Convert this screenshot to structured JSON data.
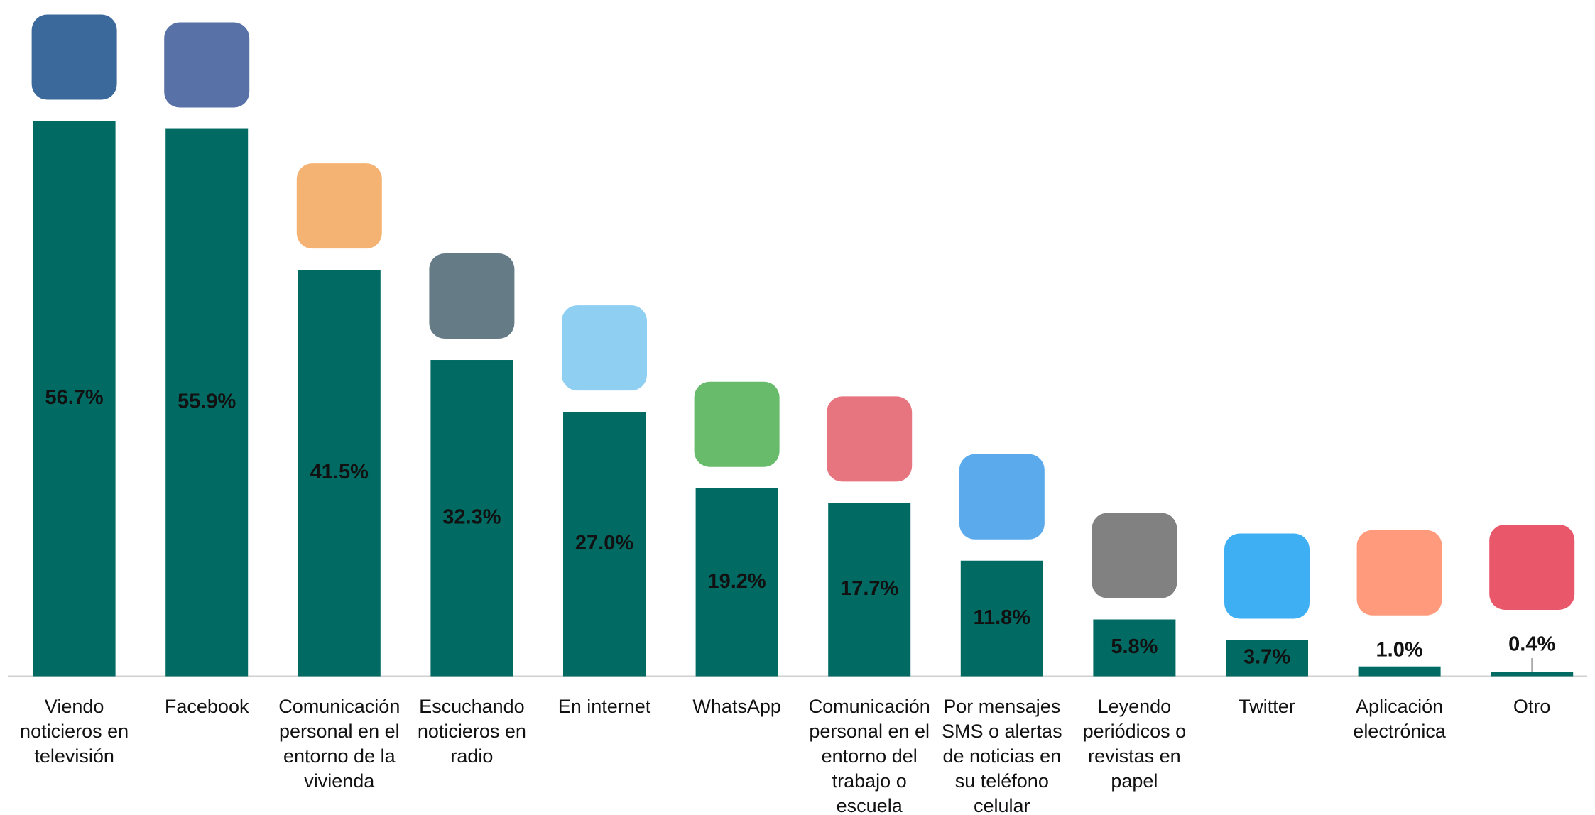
{
  "chart_data": {
    "type": "bar",
    "categories": [
      "Viendo noticieros en televisión",
      "Facebook",
      "Comunicación personal en el entorno de la vivienda",
      "Escuchando noticieros en radio",
      "En internet",
      "WhatsApp",
      "Comunicación personal en el entorno del trabajo o escuela",
      "Por mensajes SMS o alertas de noticias en su teléfono celular",
      "Leyendo periódicos o revistas en papel",
      "Twitter",
      "Aplicación electrónica",
      "Otro"
    ],
    "values": [
      56.7,
      55.9,
      41.5,
      32.3,
      27.0,
      19.2,
      17.7,
      11.8,
      5.8,
      3.7,
      1.0,
      0.4
    ],
    "value_labels": [
      "56.7%",
      "55.9%",
      "41.5%",
      "32.3%",
      "27.0%",
      "19.2%",
      "17.7%",
      "11.8%",
      "5.8%",
      "3.7%",
      "1.0%",
      "0.4%"
    ],
    "color": "#006a63",
    "ylim": [
      0,
      60
    ]
  }
}
